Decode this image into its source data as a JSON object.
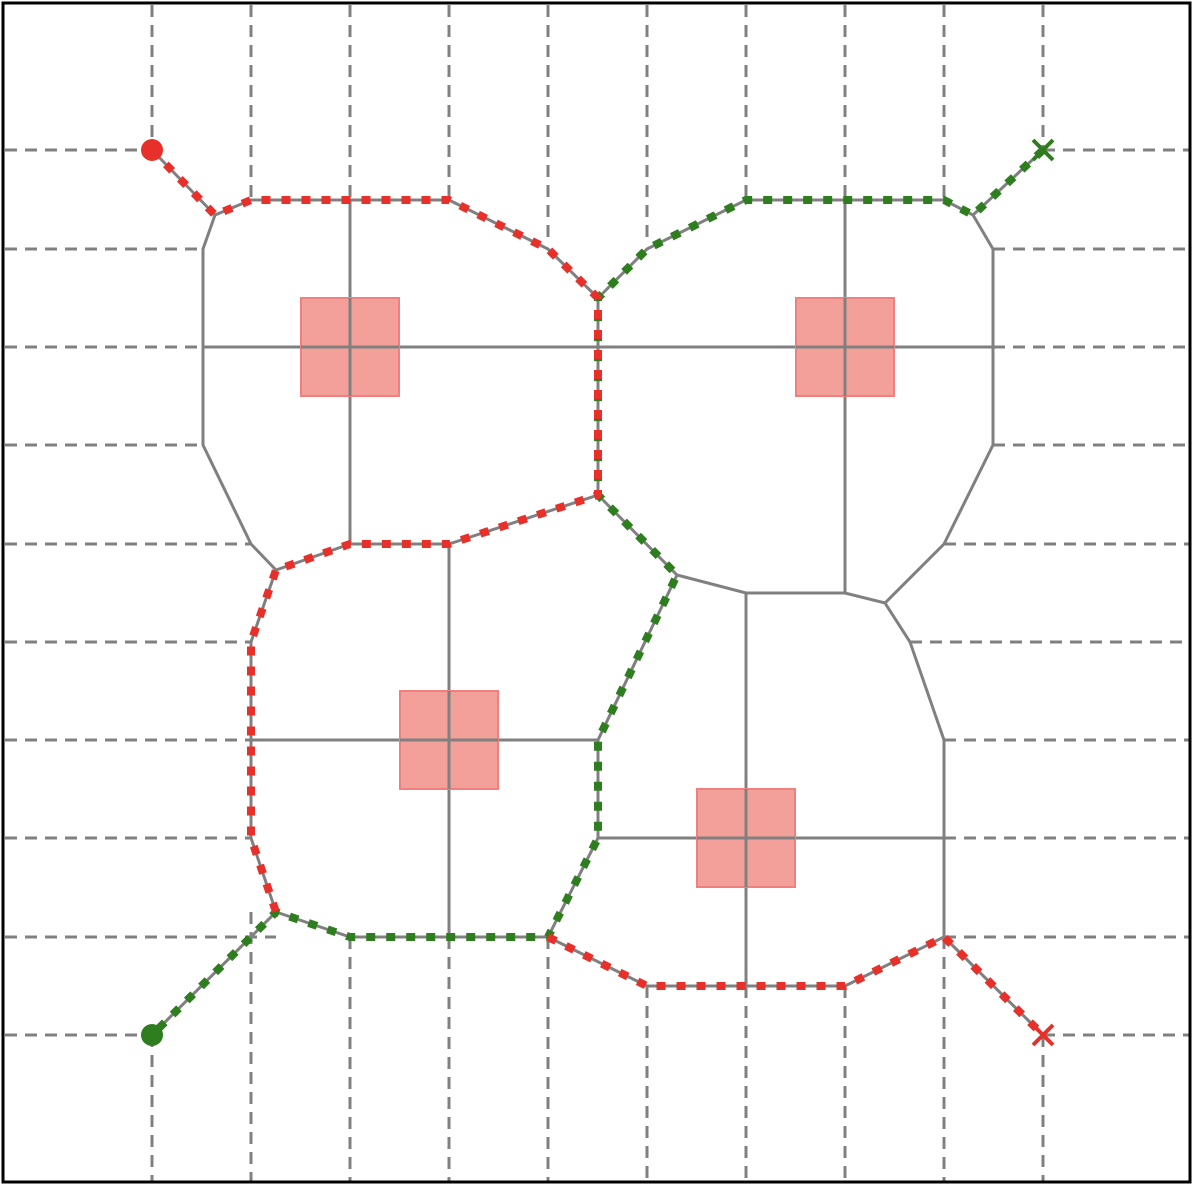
{
  "colors": {
    "background": "#ffffff",
    "frame": "#000000",
    "grid": "#808080",
    "roadmap": "#808080",
    "obstacle_fill": "#f4a09a",
    "obstacle_stroke": "#f08080",
    "agent_red": "#e8302a",
    "agent_green": "#2e7d1e"
  },
  "legend": [],
  "markers": [
    {
      "agent": "red",
      "role": "start",
      "shape": "circle"
    },
    {
      "agent": "red",
      "role": "goal",
      "shape": "cross"
    },
    {
      "agent": "green",
      "role": "start",
      "shape": "circle"
    },
    {
      "agent": "green",
      "role": "goal",
      "shape": "cross"
    }
  ],
  "obstacle_count": 4
}
